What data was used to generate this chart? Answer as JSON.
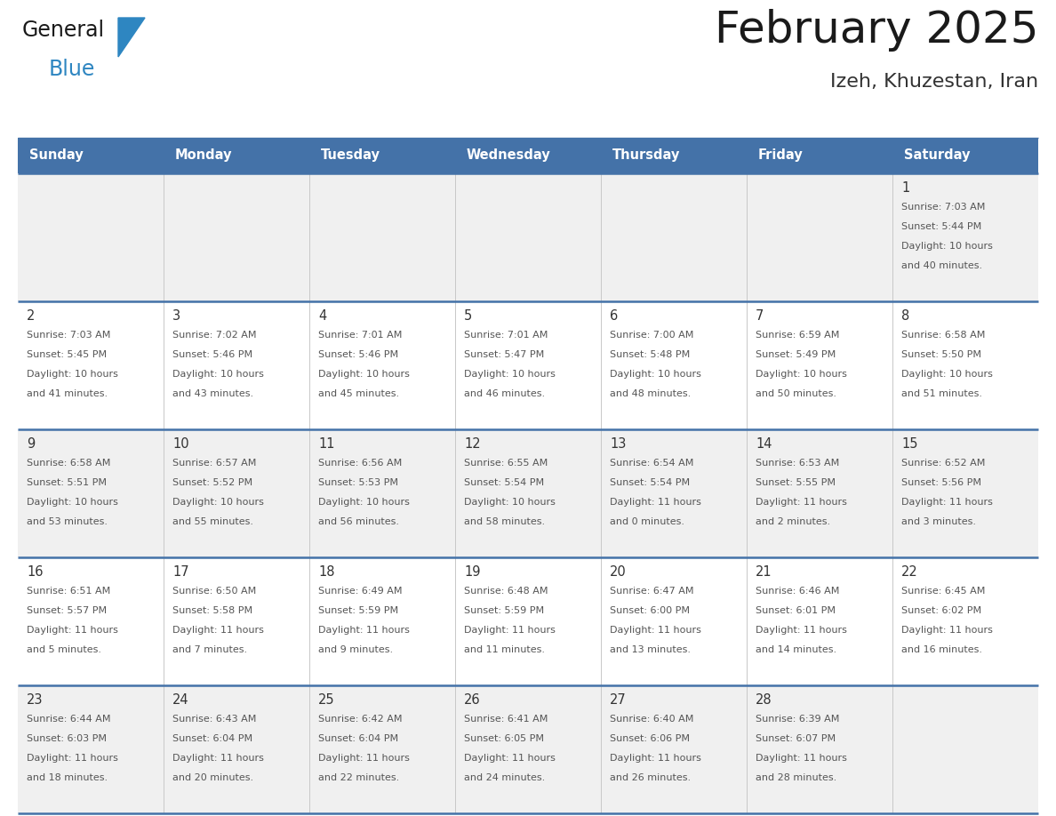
{
  "title": "February 2025",
  "subtitle": "Izeh, Khuzestan, Iran",
  "days_of_week": [
    "Sunday",
    "Monday",
    "Tuesday",
    "Wednesday",
    "Thursday",
    "Friday",
    "Saturday"
  ],
  "header_bg": "#4472a8",
  "header_text_color": "#ffffff",
  "cell_bg_light": "#f0f0f0",
  "cell_bg_white": "#ffffff",
  "divider_color": "#4472a8",
  "text_color": "#555555",
  "day_num_color": "#333333",
  "logo_general_color": "#1a1a1a",
  "logo_blue_color": "#2e86c1",
  "logo_triangle_color": "#2e86c1",
  "calendar_data": [
    [
      null,
      null,
      null,
      null,
      null,
      null,
      {
        "day": 1,
        "sunrise": "7:03 AM",
        "sunset": "5:44 PM",
        "daylight_line1": "Daylight: 10 hours",
        "daylight_line2": "and 40 minutes."
      }
    ],
    [
      {
        "day": 2,
        "sunrise": "7:03 AM",
        "sunset": "5:45 PM",
        "daylight_line1": "Daylight: 10 hours",
        "daylight_line2": "and 41 minutes."
      },
      {
        "day": 3,
        "sunrise": "7:02 AM",
        "sunset": "5:46 PM",
        "daylight_line1": "Daylight: 10 hours",
        "daylight_line2": "and 43 minutes."
      },
      {
        "day": 4,
        "sunrise": "7:01 AM",
        "sunset": "5:46 PM",
        "daylight_line1": "Daylight: 10 hours",
        "daylight_line2": "and 45 minutes."
      },
      {
        "day": 5,
        "sunrise": "7:01 AM",
        "sunset": "5:47 PM",
        "daylight_line1": "Daylight: 10 hours",
        "daylight_line2": "and 46 minutes."
      },
      {
        "day": 6,
        "sunrise": "7:00 AM",
        "sunset": "5:48 PM",
        "daylight_line1": "Daylight: 10 hours",
        "daylight_line2": "and 48 minutes."
      },
      {
        "day": 7,
        "sunrise": "6:59 AM",
        "sunset": "5:49 PM",
        "daylight_line1": "Daylight: 10 hours",
        "daylight_line2": "and 50 minutes."
      },
      {
        "day": 8,
        "sunrise": "6:58 AM",
        "sunset": "5:50 PM",
        "daylight_line1": "Daylight: 10 hours",
        "daylight_line2": "and 51 minutes."
      }
    ],
    [
      {
        "day": 9,
        "sunrise": "6:58 AM",
        "sunset": "5:51 PM",
        "daylight_line1": "Daylight: 10 hours",
        "daylight_line2": "and 53 minutes."
      },
      {
        "day": 10,
        "sunrise": "6:57 AM",
        "sunset": "5:52 PM",
        "daylight_line1": "Daylight: 10 hours",
        "daylight_line2": "and 55 minutes."
      },
      {
        "day": 11,
        "sunrise": "6:56 AM",
        "sunset": "5:53 PM",
        "daylight_line1": "Daylight: 10 hours",
        "daylight_line2": "and 56 minutes."
      },
      {
        "day": 12,
        "sunrise": "6:55 AM",
        "sunset": "5:54 PM",
        "daylight_line1": "Daylight: 10 hours",
        "daylight_line2": "and 58 minutes."
      },
      {
        "day": 13,
        "sunrise": "6:54 AM",
        "sunset": "5:54 PM",
        "daylight_line1": "Daylight: 11 hours",
        "daylight_line2": "and 0 minutes."
      },
      {
        "day": 14,
        "sunrise": "6:53 AM",
        "sunset": "5:55 PM",
        "daylight_line1": "Daylight: 11 hours",
        "daylight_line2": "and 2 minutes."
      },
      {
        "day": 15,
        "sunrise": "6:52 AM",
        "sunset": "5:56 PM",
        "daylight_line1": "Daylight: 11 hours",
        "daylight_line2": "and 3 minutes."
      }
    ],
    [
      {
        "day": 16,
        "sunrise": "6:51 AM",
        "sunset": "5:57 PM",
        "daylight_line1": "Daylight: 11 hours",
        "daylight_line2": "and 5 minutes."
      },
      {
        "day": 17,
        "sunrise": "6:50 AM",
        "sunset": "5:58 PM",
        "daylight_line1": "Daylight: 11 hours",
        "daylight_line2": "and 7 minutes."
      },
      {
        "day": 18,
        "sunrise": "6:49 AM",
        "sunset": "5:59 PM",
        "daylight_line1": "Daylight: 11 hours",
        "daylight_line2": "and 9 minutes."
      },
      {
        "day": 19,
        "sunrise": "6:48 AM",
        "sunset": "5:59 PM",
        "daylight_line1": "Daylight: 11 hours",
        "daylight_line2": "and 11 minutes."
      },
      {
        "day": 20,
        "sunrise": "6:47 AM",
        "sunset": "6:00 PM",
        "daylight_line1": "Daylight: 11 hours",
        "daylight_line2": "and 13 minutes."
      },
      {
        "day": 21,
        "sunrise": "6:46 AM",
        "sunset": "6:01 PM",
        "daylight_line1": "Daylight: 11 hours",
        "daylight_line2": "and 14 minutes."
      },
      {
        "day": 22,
        "sunrise": "6:45 AM",
        "sunset": "6:02 PM",
        "daylight_line1": "Daylight: 11 hours",
        "daylight_line2": "and 16 minutes."
      }
    ],
    [
      {
        "day": 23,
        "sunrise": "6:44 AM",
        "sunset": "6:03 PM",
        "daylight_line1": "Daylight: 11 hours",
        "daylight_line2": "and 18 minutes."
      },
      {
        "day": 24,
        "sunrise": "6:43 AM",
        "sunset": "6:04 PM",
        "daylight_line1": "Daylight: 11 hours",
        "daylight_line2": "and 20 minutes."
      },
      {
        "day": 25,
        "sunrise": "6:42 AM",
        "sunset": "6:04 PM",
        "daylight_line1": "Daylight: 11 hours",
        "daylight_line2": "and 22 minutes."
      },
      {
        "day": 26,
        "sunrise": "6:41 AM",
        "sunset": "6:05 PM",
        "daylight_line1": "Daylight: 11 hours",
        "daylight_line2": "and 24 minutes."
      },
      {
        "day": 27,
        "sunrise": "6:40 AM",
        "sunset": "6:06 PM",
        "daylight_line1": "Daylight: 11 hours",
        "daylight_line2": "and 26 minutes."
      },
      {
        "day": 28,
        "sunrise": "6:39 AM",
        "sunset": "6:07 PM",
        "daylight_line1": "Daylight: 11 hours",
        "daylight_line2": "and 28 minutes."
      },
      null
    ]
  ]
}
